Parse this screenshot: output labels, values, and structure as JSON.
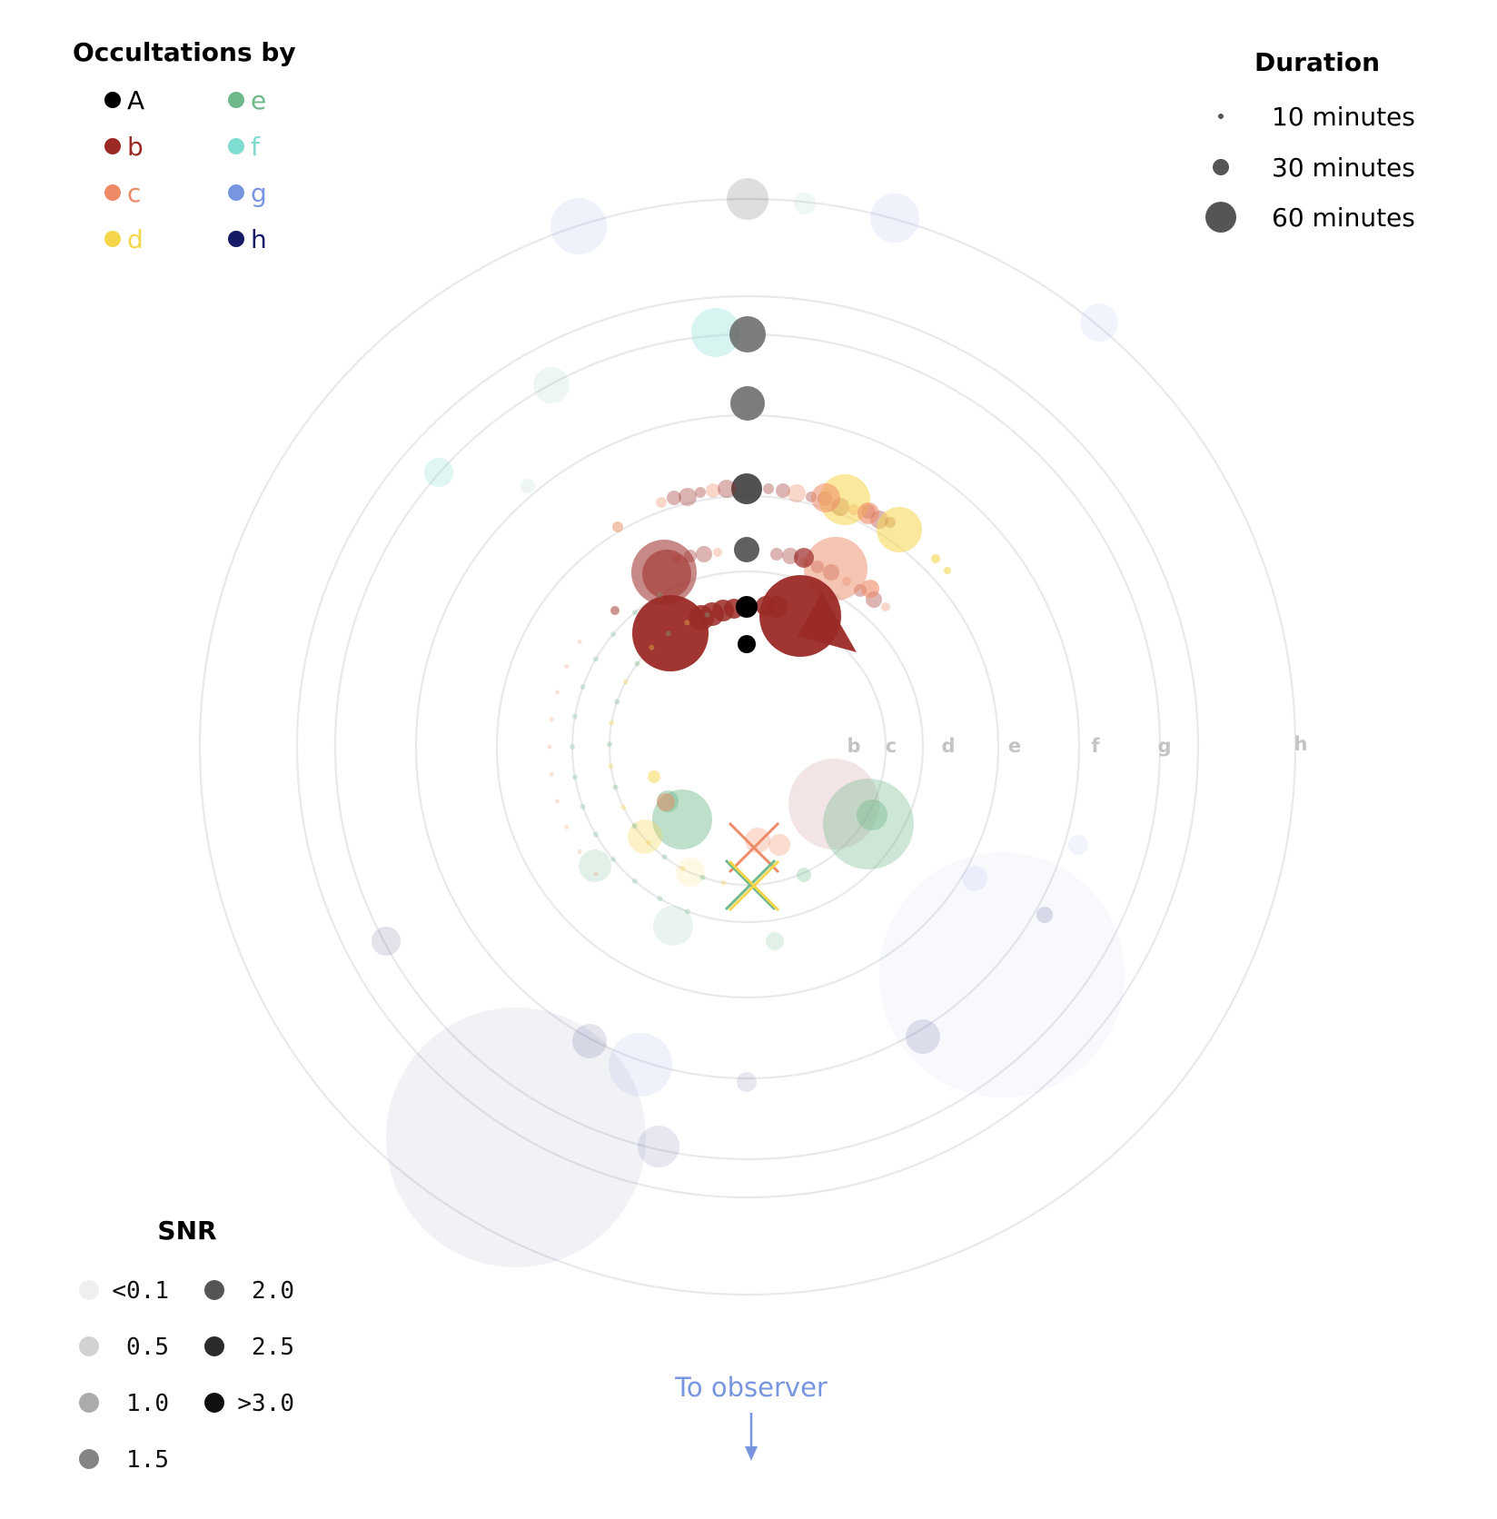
{
  "chart_data": {
    "type": "scatter",
    "title": "",
    "ring_labels": [
      "b",
      "c",
      "d",
      "e",
      "f",
      "g",
      "h"
    ],
    "occultation_legend": {
      "title": "Occultations by",
      "items": [
        {
          "label": "A",
          "color": "#000000"
        },
        {
          "label": "b",
          "color": "#9b2a26"
        },
        {
          "label": "c",
          "color": "#ee8a66"
        },
        {
          "label": "d",
          "color": "#f5d54a"
        },
        {
          "label": "e",
          "color": "#6fb88a"
        },
        {
          "label": "f",
          "color": "#7fdcd0"
        },
        {
          "label": "g",
          "color": "#7896e0"
        },
        {
          "label": "h",
          "color": "#151a66"
        }
      ]
    },
    "duration_legend": {
      "title": "Duration",
      "items": [
        {
          "label": "10 minutes",
          "minutes": 10
        },
        {
          "label": "30 minutes",
          "minutes": 30
        },
        {
          "label": "60 minutes",
          "minutes": 60
        }
      ]
    },
    "snr_legend": {
      "title": "SNR",
      "items": [
        {
          "label": "<0.1",
          "gray": "#efefef"
        },
        {
          "label": "0.5",
          "gray": "#d2d2d2"
        },
        {
          "label": "1.0",
          "gray": "#ababab"
        },
        {
          "label": "1.5",
          "gray": "#848484"
        },
        {
          "label": "2.0",
          "gray": "#555555"
        },
        {
          "label": "2.5",
          "gray": "#2b2b2b"
        },
        {
          "label": ">3.0",
          "gray": "#111111"
        }
      ]
    },
    "observer_label": "To observer",
    "observer_color": "#7896e0"
  }
}
